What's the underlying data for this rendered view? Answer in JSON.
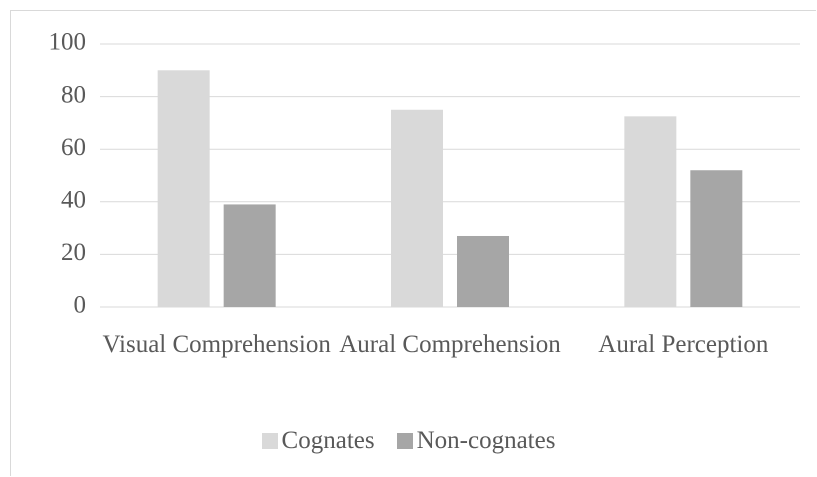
{
  "chart_data": {
    "type": "bar",
    "categories": [
      "Visual Comprehension",
      "Aural Comprehension",
      "Aural Perception"
    ],
    "series": [
      {
        "name": "Cognates",
        "color": "#d9d9d9",
        "values": [
          90,
          75,
          72.5
        ]
      },
      {
        "name": "Non-cognates",
        "color": "#a6a6a6",
        "values": [
          39,
          27,
          52
        ]
      }
    ],
    "ylim": [
      0,
      100
    ],
    "yticks": [
      0,
      20,
      40,
      60,
      80,
      100
    ],
    "grid": true,
    "legend": "bottom"
  }
}
